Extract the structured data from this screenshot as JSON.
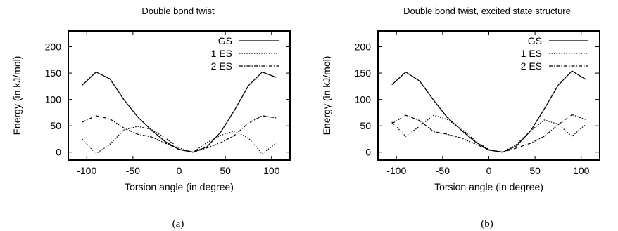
{
  "chart_data": [
    {
      "type": "line",
      "title": "Double bond twist",
      "xlabel": "Torsion angle (in degree)",
      "ylabel": "Energy (in kJ/mol)",
      "xlim": [
        -120,
        120
      ],
      "ylim": [
        -15,
        230
      ],
      "xticks": [
        "-100",
        "-50",
        "0",
        "50",
        "100"
      ],
      "yticks": [
        "0",
        "50",
        "100",
        "150",
        "200"
      ],
      "legend_position": "top-right",
      "caption": "(a)",
      "series": [
        {
          "name": "GS",
          "style": "solid",
          "x": [
            -105,
            -90,
            -75,
            -60,
            -45,
            -30,
            -15,
            0,
            15,
            30,
            45,
            60,
            75,
            90,
            105
          ],
          "y": [
            127,
            152,
            139,
            100,
            67,
            42,
            20,
            5,
            0,
            10,
            38,
            80,
            126,
            152,
            142
          ]
        },
        {
          "name": "1 ES",
          "style": "dotted",
          "x": [
            -105,
            -90,
            -75,
            -60,
            -45,
            -30,
            -15,
            0,
            15,
            30,
            45,
            60,
            75,
            90,
            105
          ],
          "y": [
            25,
            -3,
            15,
            42,
            49,
            43,
            27,
            8,
            0,
            18,
            32,
            40,
            27,
            -3,
            17
          ]
        },
        {
          "name": "2 ES",
          "style": "dash-dot",
          "x": [
            -105,
            -90,
            -75,
            -60,
            -45,
            -30,
            -15,
            0,
            15,
            30,
            45,
            60,
            75,
            90,
            105
          ],
          "y": [
            57,
            69,
            63,
            46,
            34,
            29,
            17,
            6,
            0,
            8,
            18,
            32,
            55,
            69,
            65
          ]
        }
      ]
    },
    {
      "type": "line",
      "title": "Double bond twist, excited state structure",
      "xlabel": "Torsion angle (in degree)",
      "ylabel": "Energy (in kJ/mol)",
      "xlim": [
        -120,
        120
      ],
      "ylim": [
        -15,
        230
      ],
      "xticks": [
        "-100",
        "-50",
        "0",
        "50",
        "100"
      ],
      "yticks": [
        "0",
        "50",
        "100",
        "150",
        "200"
      ],
      "legend_position": "top-right",
      "caption": "(b)",
      "series": [
        {
          "name": "GS",
          "style": "solid",
          "x": [
            -105,
            -90,
            -75,
            -60,
            -45,
            -30,
            -15,
            0,
            15,
            30,
            45,
            60,
            75,
            90,
            105
          ],
          "y": [
            128,
            152,
            135,
            99,
            66,
            42,
            20,
            4,
            0,
            12,
            40,
            82,
            127,
            154,
            138
          ]
        },
        {
          "name": "1 ES",
          "style": "dotted",
          "x": [
            -105,
            -90,
            -75,
            -60,
            -45,
            -30,
            -15,
            0,
            15,
            30,
            45,
            60,
            75,
            90,
            105
          ],
          "y": [
            57,
            30,
            49,
            70,
            62,
            45,
            22,
            5,
            0,
            15,
            40,
            61,
            53,
            30,
            53
          ]
        },
        {
          "name": "2 ES",
          "style": "dash-dot",
          "x": [
            -105,
            -90,
            -75,
            -60,
            -45,
            -30,
            -15,
            0,
            15,
            30,
            45,
            60,
            75,
            90,
            105
          ],
          "y": [
            54,
            70,
            60,
            39,
            34,
            27,
            16,
            4,
            0,
            8,
            17,
            30,
            52,
            71,
            62
          ]
        }
      ]
    }
  ]
}
